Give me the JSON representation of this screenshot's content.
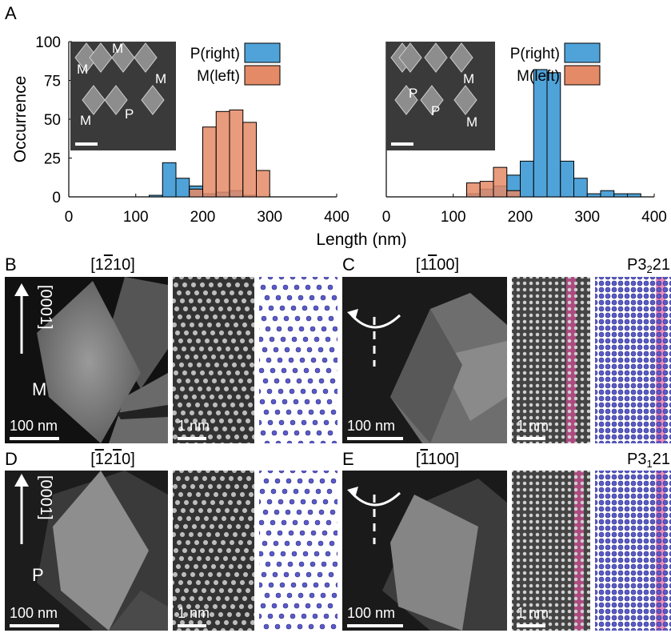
{
  "panels": {
    "A": "A",
    "B": "B",
    "C": "C",
    "D": "D",
    "E": "E"
  },
  "chart_data": [
    {
      "type": "bar",
      "panel": "A-left",
      "ylabel": "Occurrence",
      "xlabel": "Length (nm)",
      "xlim": [
        0,
        400
      ],
      "ylim": [
        0,
        100
      ],
      "xticks": [
        "0",
        "100",
        "200",
        "300",
        "400"
      ],
      "yticks": [
        "0",
        "25",
        "50",
        "75",
        "100"
      ],
      "bin_width": 20,
      "legend": {
        "position": "top-right"
      },
      "series": [
        {
          "name": "P(right)",
          "color": "#4fa3d9",
          "bins": [
            120,
            140,
            160,
            180,
            200,
            220,
            240,
            260,
            280
          ],
          "values": [
            1,
            22,
            12,
            7,
            2,
            3,
            4,
            1,
            0
          ]
        },
        {
          "name": "M(left)",
          "color": "#e58a66",
          "bins": [
            180,
            200,
            220,
            240,
            260,
            280
          ],
          "values": [
            5,
            45,
            55,
            56,
            48,
            17
          ]
        }
      ]
    },
    {
      "type": "bar",
      "panel": "A-right",
      "xlabel": "Length (nm)",
      "xlim": [
        0,
        400
      ],
      "ylim": [
        0,
        100
      ],
      "xticks": [
        "0",
        "100",
        "200",
        "300",
        "400"
      ],
      "bin_width": 20,
      "legend": {
        "position": "top-right"
      },
      "series": [
        {
          "name": "P(right)",
          "color": "#4fa3d9",
          "bins": [
            120,
            140,
            160,
            180,
            200,
            220,
            240,
            260,
            280,
            300,
            320,
            340,
            360
          ],
          "values": [
            2,
            5,
            7,
            14,
            23,
            82,
            80,
            23,
            12,
            2,
            4,
            2,
            2
          ]
        },
        {
          "name": "M(left)",
          "color": "#e58a66",
          "bins": [
            120,
            140,
            160,
            180
          ],
          "values": [
            9,
            10,
            19,
            4
          ]
        }
      ]
    }
  ],
  "inset_labels_left": [
    "M",
    "M",
    "M",
    "M",
    "P"
  ],
  "inset_labels_right": [
    "P",
    "P",
    "M",
    "M"
  ],
  "row_B": {
    "direction": "[1̅2̅10]",
    "dir_main": "1",
    "dir_bar": "2",
    "dir_rest": "10",
    "axis": "[0001]",
    "label": "M",
    "scale_big": "100 nm",
    "scale_small": "1 nm"
  },
  "row_C": {
    "dir_open": "[1",
    "dir_bar": "1",
    "dir_rest": "00]",
    "space_group_pre": "P3",
    "space_group_sub": "2",
    "space_group_post": "21",
    "scale_big": "100 nm",
    "scale_small": "1 nm"
  },
  "row_D": {
    "dir_open": "[",
    "dir_bar1": "1",
    "dir_mid": "2",
    "dir_bar2": "1",
    "dir_rest": "0]",
    "axis": "[0001]",
    "label": "P",
    "scale_big": "100 nm",
    "scale_small": "1 nm"
  },
  "row_E": {
    "dir_open": "[",
    "dir_bar": "1",
    "dir_rest": "100]",
    "space_group_pre": "P3",
    "space_group_sub": "1",
    "space_group_post": "21",
    "scale_big": "100 nm",
    "scale_small": "1 nm"
  }
}
